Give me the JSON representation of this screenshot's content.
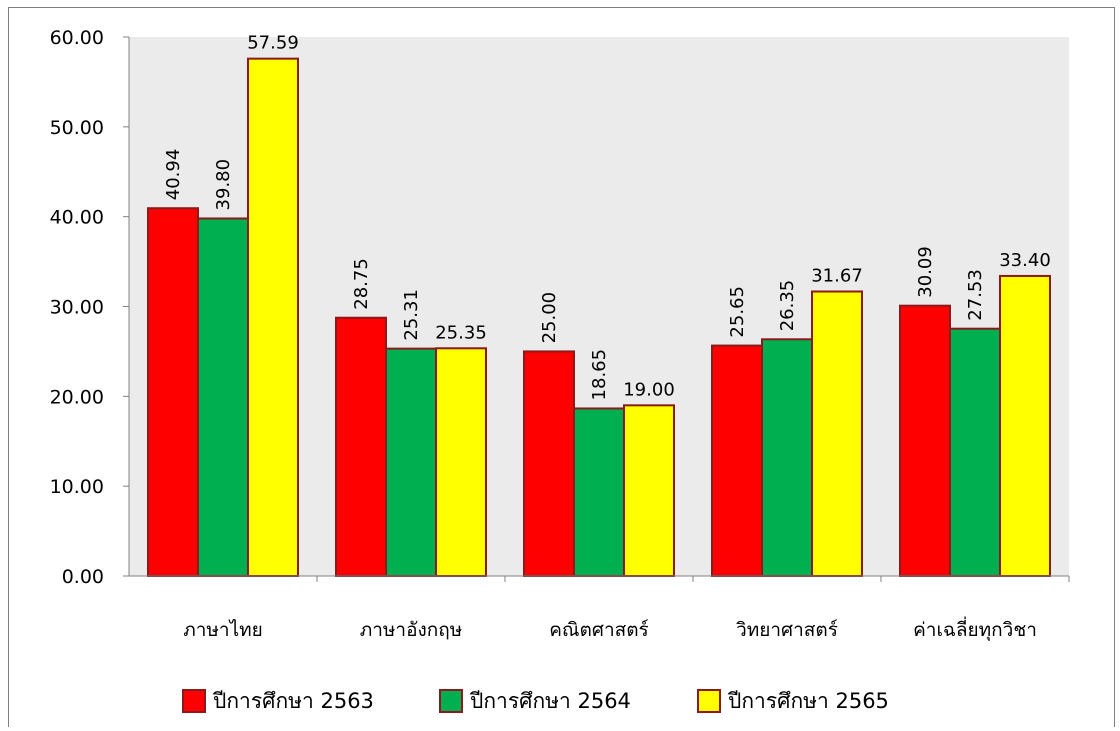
{
  "chart_data": {
    "type": "bar",
    "categories": [
      "ภาษาไทย",
      "ภาษาอังกฤษ",
      "คณิตศาสตร์",
      "วิทยาศาสตร์",
      "ค่าเฉลี่ยทุกวิชา"
    ],
    "series": [
      {
        "name": "ปีการศึกษา 2563",
        "color": "#ff0000",
        "values": [
          40.94,
          28.75,
          25.0,
          25.65,
          30.09
        ],
        "labels": [
          "40.94",
          "28.75",
          "25.00",
          "25.65",
          "30.09"
        ]
      },
      {
        "name": "ปีการศึกษา 2564",
        "color": "#00b050",
        "values": [
          39.8,
          25.31,
          18.65,
          26.35,
          27.53
        ],
        "labels": [
          "39.80",
          "25.31",
          "18.65",
          "26.35",
          "27.53"
        ]
      },
      {
        "name": "ปีการศึกษา 2565",
        "color": "#ffff00",
        "values": [
          57.59,
          25.35,
          19.0,
          31.67,
          33.4
        ],
        "labels": [
          "57.59",
          "25.35",
          "19.00",
          "31.67",
          "33.40"
        ]
      }
    ],
    "ylim": [
      0,
      60
    ],
    "yticks": [
      "0.00",
      "10.00",
      "20.00",
      "30.00",
      "40.00",
      "50.00",
      "60.00"
    ],
    "plot_background": "#ebebeb",
    "bar_outline": "#8b1a1a",
    "label_rotation": [
      [
        "vertical",
        "vertical",
        "vertical",
        "vertical",
        "vertical"
      ],
      [
        "vertical",
        "vertical",
        "vertical",
        "vertical",
        "vertical"
      ],
      [
        "horizontal",
        "horizontal",
        "horizontal",
        "horizontal",
        "horizontal"
      ]
    ],
    "legend_position": "bottom",
    "grid": false
  }
}
